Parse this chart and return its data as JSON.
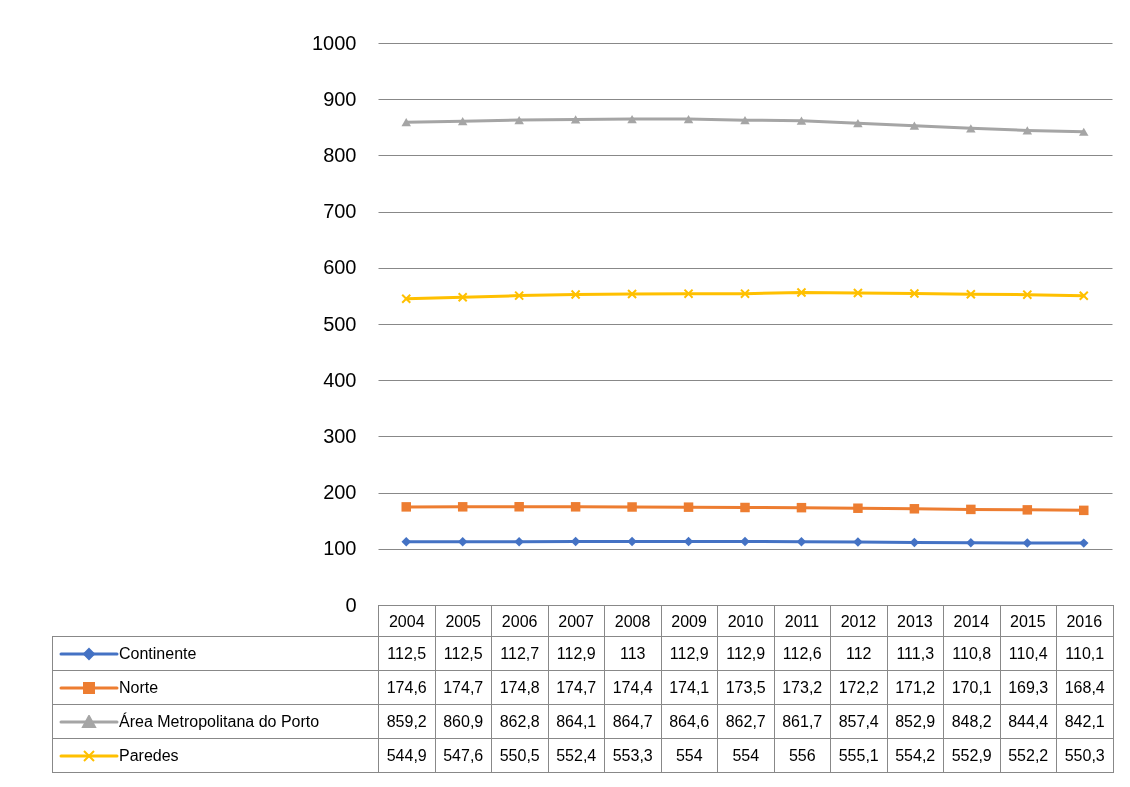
{
  "chart_data": {
    "type": "line",
    "categories": [
      "2004",
      "2005",
      "2006",
      "2007",
      "2008",
      "2009",
      "2010",
      "2011",
      "2012",
      "2013",
      "2014",
      "2015",
      "2016"
    ],
    "series": [
      {
        "name": "Continente",
        "color": "#4472c4",
        "marker": "diamond",
        "values": [
          112.5,
          112.5,
          112.7,
          112.9,
          113,
          112.9,
          112.9,
          112.6,
          112,
          111.3,
          110.8,
          110.4,
          110.1
        ],
        "value_labels": [
          "112,5",
          "112,5",
          "112,7",
          "112,9",
          "113",
          "112,9",
          "112,9",
          "112,6",
          "112",
          "111,3",
          "110,8",
          "110,4",
          "110,1"
        ]
      },
      {
        "name": "Norte",
        "color": "#ed7d31",
        "marker": "square",
        "values": [
          174.6,
          174.7,
          174.8,
          174.7,
          174.4,
          174.1,
          173.5,
          173.2,
          172.2,
          171.2,
          170.1,
          169.3,
          168.4
        ],
        "value_labels": [
          "174,6",
          "174,7",
          "174,8",
          "174,7",
          "174,4",
          "174,1",
          "173,5",
          "173,2",
          "172,2",
          "171,2",
          "170,1",
          "169,3",
          "168,4"
        ]
      },
      {
        "name": "Área Metropolitana do Porto",
        "color": "#a5a5a5",
        "marker": "triangle",
        "values": [
          859.2,
          860.9,
          862.8,
          864.1,
          864.7,
          864.6,
          862.7,
          861.7,
          857.4,
          852.9,
          848.2,
          844.4,
          842.1
        ],
        "value_labels": [
          "859,2",
          "860,9",
          "862,8",
          "864,1",
          "864,7",
          "864,6",
          "862,7",
          "861,7",
          "857,4",
          "852,9",
          "848,2",
          "844,4",
          "842,1"
        ]
      },
      {
        "name": "Paredes",
        "color": "#ffc000",
        "marker": "cross",
        "values": [
          544.9,
          547.6,
          550.5,
          552.4,
          553.3,
          554,
          554,
          556,
          555.1,
          554.2,
          552.9,
          552.2,
          550.3
        ],
        "value_labels": [
          "544,9",
          "547,6",
          "550,5",
          "552,4",
          "553,3",
          "554",
          "554",
          "556",
          "555,1",
          "554,2",
          "552,9",
          "552,2",
          "550,3"
        ]
      }
    ],
    "ylim": [
      0,
      1000
    ],
    "yticks": [
      0,
      100,
      200,
      300,
      400,
      500,
      600,
      700,
      800,
      900,
      {
        "value": 1000,
        "label": "1000"
      }
    ],
    "grid": "y",
    "legend": "bottom"
  }
}
